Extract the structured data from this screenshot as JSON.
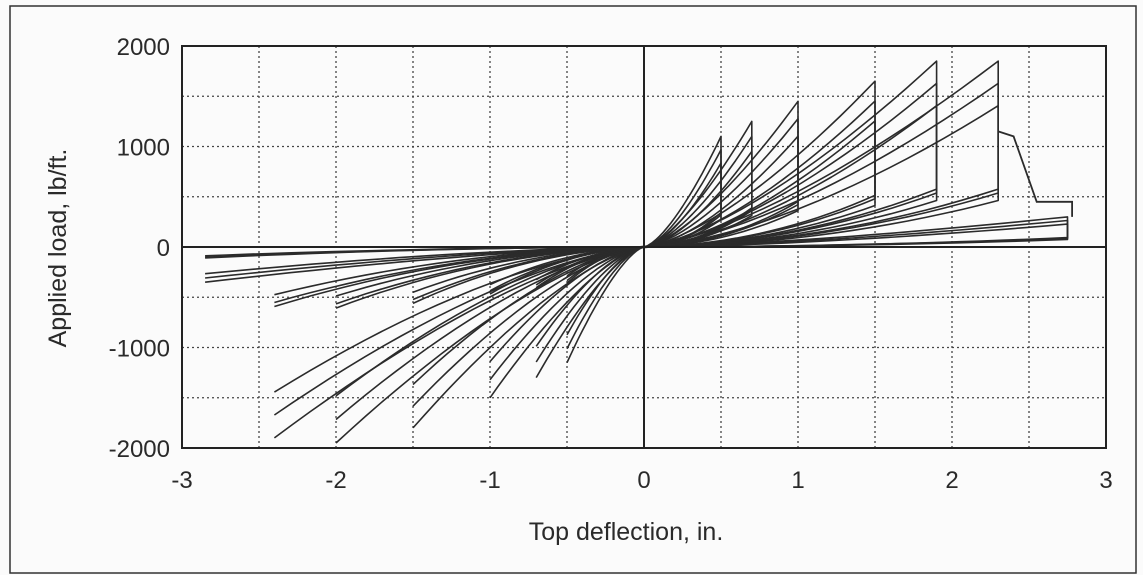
{
  "chart_data": {
    "type": "line",
    "title": "",
    "xlabel": "Top deflection, in.",
    "ylabel": "Applied load, lb/ft.",
    "xlim": [
      -3,
      3
    ],
    "ylim": [
      -2000,
      2000
    ],
    "x_ticks": [
      "-3",
      "-2",
      "-1",
      "0",
      "1",
      "2",
      "3"
    ],
    "y_ticks": [
      "2000",
      "1000",
      "0",
      "-1000",
      "-2000"
    ],
    "x_grid_step": 0.5,
    "y_grid_step": 500,
    "grid": true,
    "legend": "none",
    "line_color": "#2b2b2b",
    "cycle_amplitudes": [
      {
        "pos_disp": 0.5,
        "pos_load": 1100,
        "neg_disp": -0.5,
        "neg_load": -1150
      },
      {
        "pos_disp": 0.7,
        "pos_load": 1250,
        "neg_disp": -0.7,
        "neg_load": -1300
      },
      {
        "pos_disp": 1.0,
        "pos_load": 1450,
        "neg_disp": -1.0,
        "neg_load": -1500
      },
      {
        "pos_disp": 1.5,
        "pos_load": 1650,
        "neg_disp": -1.5,
        "neg_load": -1800
      },
      {
        "pos_disp": 1.9,
        "pos_load": 1850,
        "neg_disp": -2.0,
        "neg_load": -1950
      },
      {
        "pos_disp": 2.3,
        "pos_load": 1850,
        "neg_disp": -2.4,
        "neg_load": -1900
      },
      {
        "pos_disp": 2.75,
        "pos_load": 300,
        "neg_disp": -2.85,
        "neg_load": -350
      }
    ],
    "failure_branch": {
      "x": [
        2.3,
        2.4,
        2.55,
        2.78,
        2.78
      ],
      "y": [
        1150,
        1100,
        450,
        450,
        300
      ]
    }
  }
}
